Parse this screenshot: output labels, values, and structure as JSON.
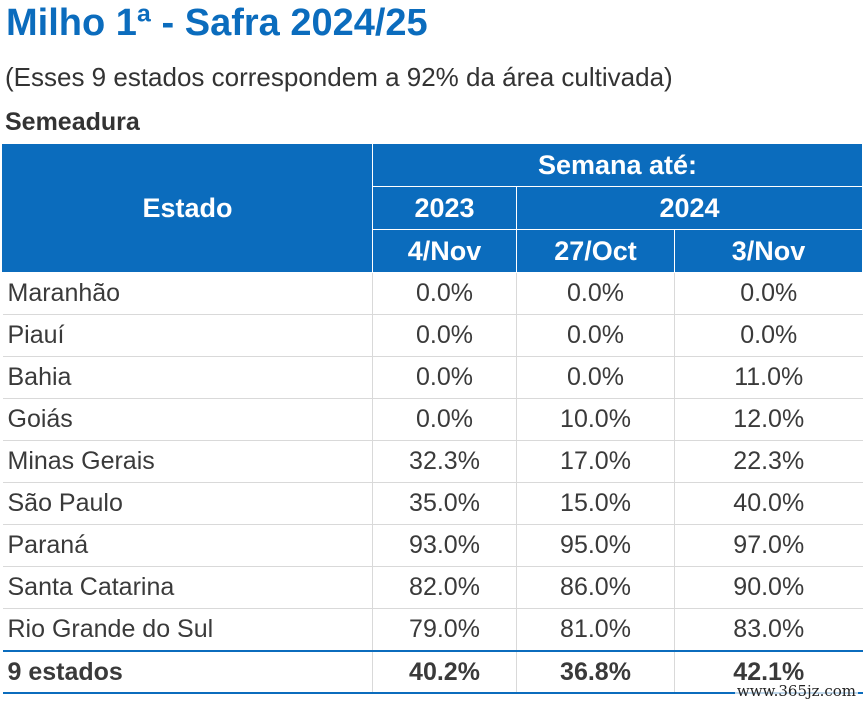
{
  "title": "Milho 1ª - Safra 2024/25",
  "subtitle": "(Esses 9 estados correspondem a 92% da área cultivada)",
  "section": "Semeadura",
  "table": {
    "header_estado": "Estado",
    "header_semana": "Semana até:",
    "year_2023": "2023",
    "year_2024": "2024",
    "weeks": [
      "4/Nov",
      "27/Oct",
      "3/Nov"
    ],
    "rows": [
      {
        "estado": "Maranhão",
        "values": [
          "0.0%",
          "0.0%",
          "0.0%"
        ]
      },
      {
        "estado": "Piauí",
        "values": [
          "0.0%",
          "0.0%",
          "0.0%"
        ]
      },
      {
        "estado": "Bahia",
        "values": [
          "0.0%",
          "0.0%",
          "11.0%"
        ]
      },
      {
        "estado": "Goiás",
        "values": [
          "0.0%",
          "10.0%",
          "12.0%"
        ]
      },
      {
        "estado": "Minas Gerais",
        "values": [
          "32.3%",
          "17.0%",
          "22.3%"
        ]
      },
      {
        "estado": "São Paulo",
        "values": [
          "35.0%",
          "15.0%",
          "40.0%"
        ]
      },
      {
        "estado": "Paraná",
        "values": [
          "93.0%",
          "95.0%",
          "97.0%"
        ]
      },
      {
        "estado": "Santa Catarina",
        "values": [
          "82.0%",
          "86.0%",
          "90.0%"
        ]
      },
      {
        "estado": "Rio Grande do Sul",
        "values": [
          "79.0%",
          "81.0%",
          "83.0%"
        ]
      }
    ],
    "total": {
      "estado": "9 estados",
      "values": [
        "40.2%",
        "36.8%",
        "42.1%"
      ]
    }
  },
  "watermark": "www.365jz.com",
  "colors": {
    "header_blue": "#0b6cbd",
    "text": "#3a3a3a"
  }
}
